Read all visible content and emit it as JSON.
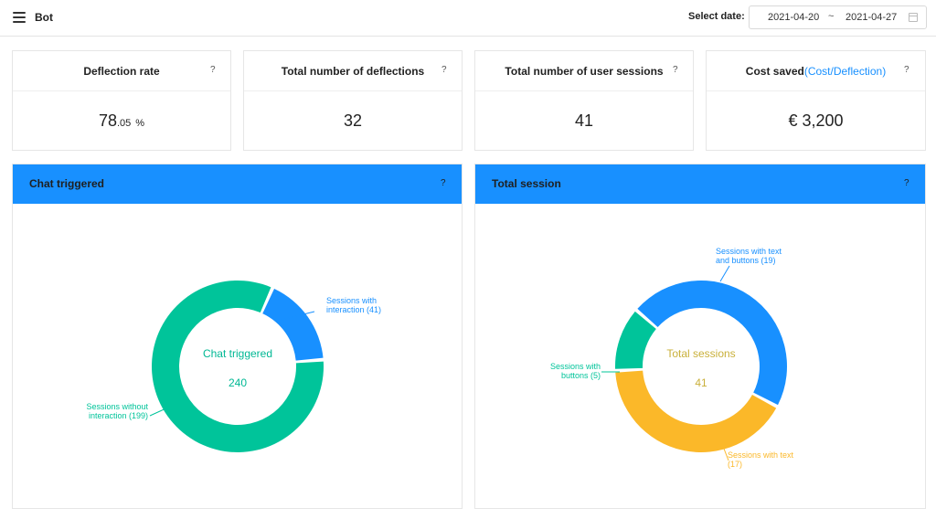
{
  "header": {
    "title": "Bot",
    "date_label": "Select date:",
    "date_start": "2021-04-20",
    "date_separator": "~",
    "date_end": "2021-04-27"
  },
  "metrics": [
    {
      "title": "Deflection rate",
      "value_int": "78",
      "value_dec": ".05",
      "value_unit": "%",
      "help": "?"
    },
    {
      "title": "Total number of deflections",
      "value": "32",
      "help": "?"
    },
    {
      "title": "Total number of user sessions",
      "value": "41",
      "help": "?"
    },
    {
      "title": "Cost saved",
      "title_sub": "(Cost/Deflection)",
      "value": "€ 3,200",
      "help": "?"
    }
  ],
  "colors": {
    "accent": "#1890ff",
    "green": "#00c49a",
    "blue": "#1890ff",
    "yellow": "#fbb829"
  },
  "chart_data": [
    {
      "type": "pie",
      "title": "Chat triggered",
      "center_label": "Chat triggered",
      "center_value": "240",
      "help": "?",
      "slices": [
        {
          "label": "Sessions with interaction (41)",
          "line1": "Sessions with",
          "line2": "interaction (41)",
          "value": 41,
          "color": "#1890ff"
        },
        {
          "label": "Sessions without interaction (199)",
          "line1": "Sessions without",
          "line2": "interaction (199)",
          "value": 199,
          "color": "#00c49a"
        }
      ]
    },
    {
      "type": "pie",
      "title": "Total session",
      "center_label": "Total sessions",
      "center_value": "41",
      "help": "?",
      "slices": [
        {
          "label": "Sessions with text and buttons (19)",
          "line1": "Sessions with text",
          "line2": "and buttons (19)",
          "value": 19,
          "color": "#1890ff"
        },
        {
          "label": "Sessions with text (17)",
          "line1": "Sessions with text",
          "line2": "(17)",
          "value": 17,
          "color": "#fbb829"
        },
        {
          "label": "Sessions with buttons (5)",
          "line1": "Sessions with",
          "line2": "buttons (5)",
          "value": 5,
          "color": "#00c49a"
        }
      ]
    }
  ]
}
